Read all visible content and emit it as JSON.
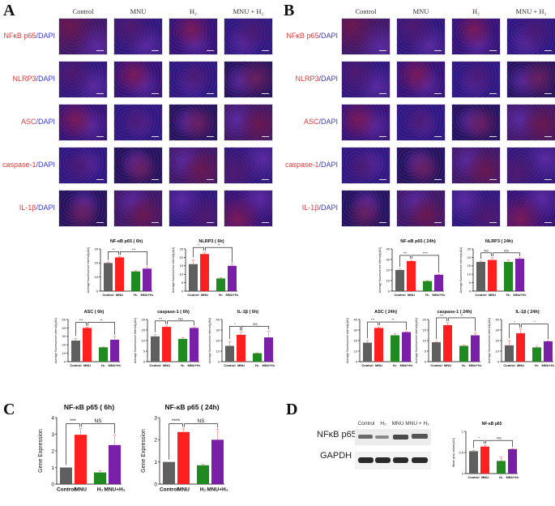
{
  "panels": {
    "A": {
      "letter": "A",
      "columns": [
        "Control",
        "MNU",
        "H₂",
        "MNU + H₂"
      ],
      "rows": [
        {
          "red": "NFκB p65",
          "blue": "DAPI"
        },
        {
          "red": "NLRP3",
          "blue": "DAPI"
        },
        {
          "red": "ASC",
          "blue": "DAPI"
        },
        {
          "red": "caspase-1",
          "blue": "DAPI"
        },
        {
          "red": "IL-1β",
          "blue": "DAPI"
        }
      ]
    },
    "B": {
      "letter": "B",
      "columns": [
        "Control",
        "MNU",
        "H₂",
        "MNU + H₂"
      ],
      "rows": [
        {
          "red": "NFκB p65",
          "blue": "DAPI"
        },
        {
          "red": "NLRP3",
          "blue": "DAPI"
        },
        {
          "red": "ASC",
          "blue": "DAPI"
        },
        {
          "red": "caspase-1",
          "blue": "DAPI"
        },
        {
          "red": "IL-1β",
          "blue": "DAPI"
        }
      ]
    },
    "C": {
      "letter": "C"
    },
    "D": {
      "letter": "D",
      "blot": {
        "lanes": [
          "Control",
          "H₂",
          "MNU",
          "MNU + H₂"
        ],
        "bands": [
          "NFκB p65",
          "GAPDH"
        ]
      }
    }
  },
  "colors": {
    "control": "#5f5f5f",
    "mnu": "#ff1f1f",
    "h2": "#1f8a1f",
    "mnu_h2": "#7a1fa8",
    "error": "#ff8080"
  },
  "chart_data": [
    {
      "id": "A1",
      "type": "bar",
      "title": "NF-κB p65 ( 6h)",
      "ylabel": "Average fluorescence intensity(AU)",
      "categories": [
        "Control",
        "MNU",
        "H₂",
        "MNU+H₂"
      ],
      "values": [
        20,
        24,
        14,
        16
      ],
      "errors": [
        0.5,
        0.6,
        0.5,
        1.0
      ],
      "ylim": [
        0,
        30
      ],
      "yticks": [
        0,
        10,
        20,
        30
      ],
      "sig": [
        "**",
        "***"
      ]
    },
    {
      "id": "A2",
      "type": "bar",
      "title": "NLRP3 ( 6h)",
      "ylabel": "Average fluorescence intensity(AU)",
      "categories": [
        "Control",
        "MNU",
        "H₂",
        "MNU+H₂"
      ],
      "values": [
        16,
        22,
        7.5,
        15
      ],
      "errors": [
        2.5,
        1.0,
        0.5,
        1.0
      ],
      "ylim": [
        0,
        25
      ],
      "yticks": [
        0,
        5,
        10,
        15,
        20,
        25
      ],
      "sig": [
        "*",
        "**"
      ]
    },
    {
      "id": "A3",
      "type": "bar",
      "title": "ASC ( 6h)",
      "ylabel": "Average fluorescence intensity(AU)",
      "categories": [
        "Control",
        "MNU",
        "H₂",
        "MNU+H₂"
      ],
      "values": [
        25,
        40,
        17,
        26
      ],
      "errors": [
        2.5,
        0.8,
        0.5,
        4.0
      ],
      "ylim": [
        0,
        50
      ],
      "yticks": [
        0,
        10,
        20,
        30,
        40,
        50
      ],
      "sig": [
        "***",
        "**"
      ]
    },
    {
      "id": "A4",
      "type": "bar",
      "title": "caspase-1 ( 6h)",
      "ylabel": "Average fluorescence intensity(AU)",
      "categories": [
        "Control",
        "MNU",
        "H₂",
        "MNU+H₂"
      ],
      "values": [
        12,
        16.5,
        10.8,
        16
      ],
      "errors": [
        0.8,
        0.5,
        0.6,
        0.5
      ],
      "ylim": [
        0,
        20
      ],
      "yticks": [
        0,
        5,
        10,
        15,
        20
      ],
      "sig": [
        "***",
        "NS"
      ]
    },
    {
      "id": "A5",
      "type": "bar",
      "title": "IL-1β ( 6h)",
      "ylabel": "Average fluorescence intensity(AU)",
      "categories": [
        "Control",
        "MNU",
        "H₂",
        "MNU+H₂"
      ],
      "values": [
        15,
        25.5,
        8,
        23
      ],
      "errors": [
        4.0,
        2.5,
        0.3,
        6.0
      ],
      "ylim": [
        0,
        40
      ],
      "yticks": [
        0,
        10,
        20,
        30,
        40
      ],
      "sig": [
        "*",
        "NS"
      ]
    },
    {
      "id": "B1",
      "type": "bar",
      "title": "NF-κB p65 ( 24h)",
      "ylabel": "Average fluorescence intensity(AU)",
      "categories": [
        "Control",
        "MNU",
        "H₂",
        "MNU+H₂"
      ],
      "values": [
        20,
        28.5,
        9.5,
        15.5
      ],
      "errors": [
        0.8,
        0.8,
        0.4,
        0.5
      ],
      "ylim": [
        0,
        40
      ],
      "yticks": [
        0,
        10,
        20,
        30,
        40
      ],
      "sig": [
        "***",
        "****"
      ]
    },
    {
      "id": "B2",
      "type": "bar",
      "title": "NLRP3 ( 24h)",
      "ylabel": "Average fluorescence intensity(AU)",
      "categories": [
        "Control",
        "MNU",
        "H₂",
        "MNU+H₂"
      ],
      "values": [
        17.3,
        18.5,
        17.3,
        19.2
      ],
      "errors": [
        0.5,
        1.2,
        1.2,
        0.6
      ],
      "ylim": [
        0,
        25
      ],
      "yticks": [
        0,
        5,
        10,
        15,
        20,
        25
      ],
      "sig": [
        "NS",
        "NS"
      ]
    },
    {
      "id": "B3",
      "type": "bar",
      "title": "ASC ( 24h)",
      "ylabel": "Average fluorescence intensity(AU)",
      "categories": [
        "Control",
        "MNU",
        "H₂",
        "MNU+H₂"
      ],
      "values": [
        18,
        32,
        25,
        28
      ],
      "errors": [
        2.0,
        1.0,
        1.5,
        0.6
      ],
      "ylim": [
        0,
        40
      ],
      "yticks": [
        0,
        10,
        20,
        30,
        40
      ],
      "sig": [
        "***",
        "**"
      ]
    },
    {
      "id": "B4",
      "type": "bar",
      "title": "caspase-1 ( 24h)",
      "ylabel": "Average fluorescence intensity(AU)",
      "categories": [
        "Control",
        "MNU",
        "H₂",
        "MNU+H₂"
      ],
      "values": [
        9.2,
        17.3,
        7.5,
        12.5
      ],
      "errors": [
        0.4,
        1.2,
        0.4,
        1.2
      ],
      "ylim": [
        0,
        20
      ],
      "yticks": [
        0,
        5,
        10,
        15,
        20
      ],
      "sig": [
        "***",
        "**"
      ]
    },
    {
      "id": "B5",
      "type": "bar",
      "title": "IL-1β ( 24h)",
      "ylabel": "Average fluorescence intensity(AU)",
      "categories": [
        "Control",
        "MNU",
        "H₂",
        "MNU+H₂"
      ],
      "values": [
        15.5,
        27,
        13.5,
        19.3
      ],
      "errors": [
        4.5,
        4.0,
        1.0,
        0.5
      ],
      "ylim": [
        0,
        40
      ],
      "yticks": [
        0,
        10,
        20,
        30,
        40
      ],
      "sig": [
        "*",
        "*"
      ]
    },
    {
      "id": "C1",
      "type": "bar",
      "title": "NF-κB p65 ( 6h)",
      "ylabel": "Gene Expression",
      "categories": [
        "Control",
        "MNU",
        "H₂",
        "MNU+H₂"
      ],
      "values": [
        1.0,
        2.97,
        0.7,
        2.35
      ],
      "errors": [
        0,
        0.37,
        0.12,
        0.6
      ],
      "ylim": [
        0,
        4
      ],
      "yticks": [
        0,
        1,
        2,
        3,
        4
      ],
      "sig": [
        "***",
        "NS"
      ]
    },
    {
      "id": "C2",
      "type": "bar",
      "title": "NF-κB p65 ( 24h)",
      "ylabel": "Gene Expression",
      "categories": [
        "Control",
        "MNU",
        "H₂",
        "MNU+H₂"
      ],
      "values": [
        1.0,
        2.35,
        0.85,
        2.0
      ],
      "errors": [
        0,
        0.15,
        0.05,
        0.48
      ],
      "ylim": [
        0,
        3
      ],
      "yticks": [
        0,
        1,
        2,
        3
      ],
      "sig": [
        "****",
        "NS"
      ]
    },
    {
      "id": "D1",
      "type": "bar",
      "title": "NF-κB p65",
      "ylabel": "Mean grey values(AU)",
      "categories": [
        "Control",
        "MNU",
        "H₂",
        "MNU+H₂"
      ],
      "values": [
        0.53,
        0.64,
        0.3,
        0.58
      ],
      "errors": [
        0.02,
        0.03,
        0.1,
        0.01
      ],
      "ylim": [
        0,
        1.0
      ],
      "yticks": [
        0.0,
        0.5,
        1.0
      ],
      "sig": [
        "*",
        "NS"
      ]
    }
  ]
}
